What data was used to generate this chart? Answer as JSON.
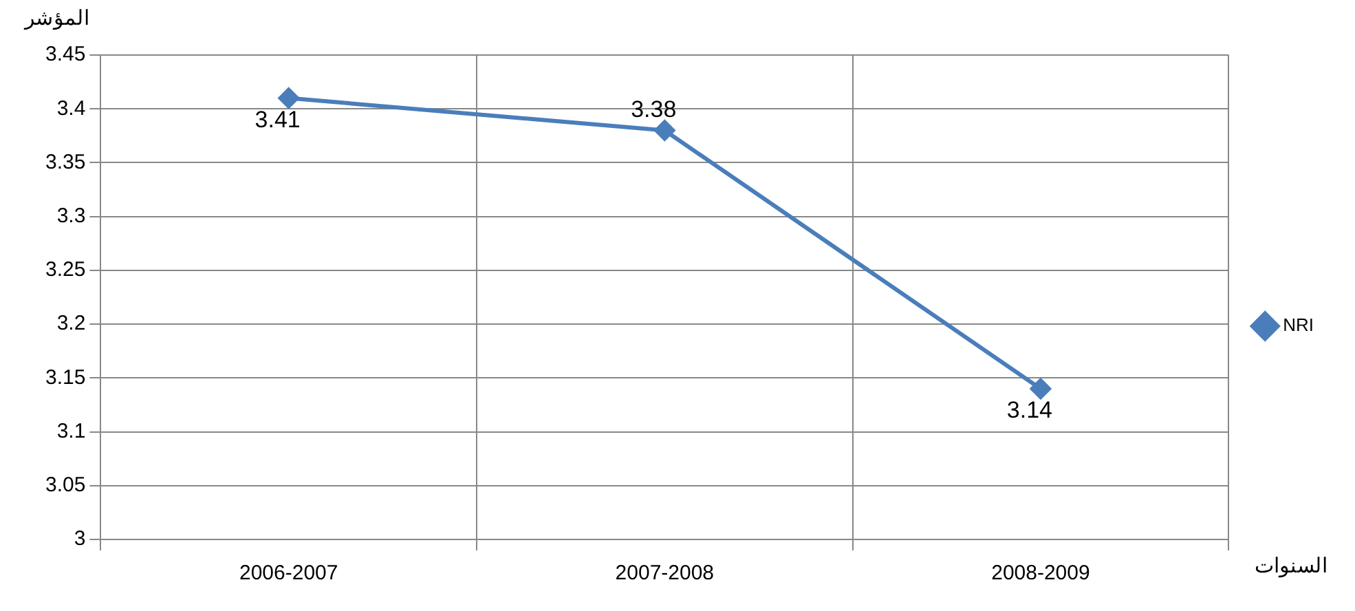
{
  "chart_data": {
    "type": "line",
    "xlabel": "السنوات",
    "ylabel": "المؤشر",
    "categories": [
      "2006-2007",
      "2007-2008",
      "2008-2009"
    ],
    "series": [
      {
        "name": "NRI",
        "color": "#4a7ebb",
        "values": [
          3.41,
          3.38,
          3.14
        ]
      }
    ],
    "ylim": [
      3,
      3.45
    ],
    "yticks": [
      3,
      3.05,
      3.1,
      3.15,
      3.2,
      3.25,
      3.3,
      3.35,
      3.4,
      3.45
    ],
    "grid": true,
    "legend": "right",
    "marker": "diamond",
    "line_style": "solid",
    "data_labels": true
  }
}
